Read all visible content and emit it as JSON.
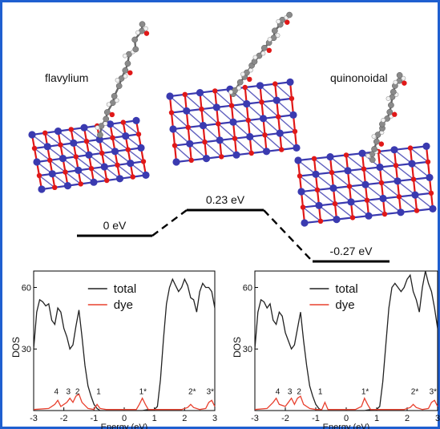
{
  "figure": {
    "frame_color": "#1f5fd0",
    "structure_labels": {
      "left": "flavylium",
      "right": "quinonoidal"
    },
    "energy_levels": [
      {
        "label": "0 eV",
        "value": 0
      },
      {
        "label": "0.23 eV",
        "value": 0.23
      },
      {
        "label": "-0.27 eV",
        "value": -0.27
      }
    ],
    "atom_colors": {
      "oxygen": "#e01818",
      "titanium": "#3a3ab0",
      "carbon": "#8a8a8a",
      "hydrogen": "#f2f2f2"
    }
  },
  "chart_data": [
    {
      "type": "line",
      "title": "",
      "xlabel": "Energy (eV)",
      "ylabel": "DOS",
      "xlim": [
        -3,
        3
      ],
      "ylim": [
        0,
        68
      ],
      "xticks": [
        "-3",
        "-2",
        "-1",
        "0",
        "1",
        "2",
        "3"
      ],
      "yticks": [
        "30",
        "60"
      ],
      "legend": "top-center",
      "series": [
        {
          "name": "total",
          "color": "#222222",
          "x": [
            -3.0,
            -2.9,
            -2.8,
            -2.7,
            -2.6,
            -2.5,
            -2.4,
            -2.3,
            -2.2,
            -2.1,
            -2.0,
            -1.9,
            -1.8,
            -1.7,
            -1.6,
            -1.5,
            -1.4,
            -1.3,
            -1.2,
            -1.1,
            -1.0,
            -0.9,
            -0.8,
            0.6,
            0.8,
            1.0,
            1.1,
            1.2,
            1.3,
            1.4,
            1.5,
            1.6,
            1.7,
            1.8,
            1.9,
            2.0,
            2.1,
            2.2,
            2.3,
            2.4,
            2.5,
            2.6,
            2.7,
            2.8,
            2.9,
            3.0
          ],
          "y": [
            30,
            48,
            54,
            53,
            51,
            52,
            44,
            42,
            50,
            48,
            40,
            36,
            30,
            32,
            41,
            49,
            36,
            22,
            12,
            7,
            3,
            1,
            0,
            0,
            0.5,
            0.6,
            2,
            15,
            35,
            52,
            60,
            64,
            61,
            58,
            60,
            64,
            61,
            55,
            54,
            48,
            58,
            62,
            60,
            60,
            58,
            50
          ]
        },
        {
          "name": "dye",
          "color": "#e8402e",
          "x": [
            -3.0,
            -2.5,
            -2.3,
            -2.2,
            -2.1,
            -1.9,
            -1.8,
            -1.7,
            -1.6,
            -1.5,
            -1.4,
            -1.2,
            -1.0,
            -0.9,
            -0.8,
            -0.6,
            0.4,
            0.5,
            0.6,
            0.7,
            0.8,
            1.9,
            2.1,
            2.2,
            2.3,
            2.5,
            2.7,
            2.8,
            2.9,
            3.0
          ],
          "y": [
            0.5,
            1,
            3,
            5,
            2,
            4,
            6,
            4,
            7,
            8,
            4,
            1,
            0.5,
            3,
            1,
            0.5,
            0.5,
            3,
            6,
            3,
            0.5,
            0.5,
            1.5,
            3,
            1.5,
            0.5,
            1,
            4,
            5,
            2
          ]
        }
      ],
      "peak_labels": [
        "4",
        "3",
        "2",
        "1",
        "1*",
        "2*",
        "3*"
      ]
    },
    {
      "type": "line",
      "title": "",
      "xlabel": "Energy (eV)",
      "ylabel": "DOS",
      "xlim": [
        -3,
        3
      ],
      "ylim": [
        0,
        68
      ],
      "xticks": [
        "-3",
        "-2",
        "-1",
        "0",
        "1",
        "2",
        "3"
      ],
      "yticks": [
        "30",
        "60"
      ],
      "legend": "top-center",
      "series": [
        {
          "name": "total",
          "color": "#222222",
          "x": [
            -3.0,
            -2.9,
            -2.8,
            -2.7,
            -2.6,
            -2.5,
            -2.4,
            -2.3,
            -2.2,
            -2.1,
            -2.0,
            -1.9,
            -1.8,
            -1.7,
            -1.6,
            -1.5,
            -1.4,
            -1.3,
            -1.2,
            -1.1,
            -1.0,
            -0.9,
            -0.8,
            0.6,
            0.8,
            1.0,
            1.1,
            1.2,
            1.3,
            1.4,
            1.5,
            1.6,
            1.7,
            1.8,
            1.9,
            2.0,
            2.1,
            2.2,
            2.3,
            2.4,
            2.5,
            2.6,
            2.7,
            2.8,
            2.9,
            3.0
          ],
          "y": [
            30,
            48,
            54,
            53,
            50,
            52,
            44,
            42,
            48,
            46,
            38,
            34,
            30,
            32,
            40,
            48,
            34,
            22,
            12,
            7,
            3,
            1,
            0,
            0,
            0.5,
            0.6,
            2,
            14,
            32,
            50,
            60,
            62,
            60,
            58,
            60,
            64,
            66,
            58,
            54,
            48,
            60,
            68,
            62,
            58,
            50,
            40
          ]
        },
        {
          "name": "dye",
          "color": "#e8402e",
          "x": [
            -3.0,
            -2.6,
            -2.4,
            -2.3,
            -2.2,
            -2.0,
            -1.9,
            -1.8,
            -1.7,
            -1.6,
            -1.5,
            -1.4,
            -1.2,
            -1.0,
            -0.8,
            -0.7,
            -0.6,
            0.3,
            0.5,
            0.6,
            0.7,
            0.8,
            1.9,
            2.1,
            2.2,
            2.3,
            2.5,
            2.7,
            2.8,
            2.9,
            3.0
          ],
          "y": [
            0.5,
            1,
            4,
            6,
            3,
            2,
            4,
            6,
            3,
            6,
            7,
            3,
            1,
            0.5,
            0.5,
            4,
            0.5,
            0.5,
            2,
            6,
            3,
            0.5,
            0.5,
            1.5,
            3,
            1.5,
            0.5,
            1,
            4,
            5,
            2
          ]
        }
      ],
      "peak_labels": [
        "4",
        "3",
        "2",
        "1",
        "1*",
        "2*",
        "3*"
      ]
    }
  ]
}
